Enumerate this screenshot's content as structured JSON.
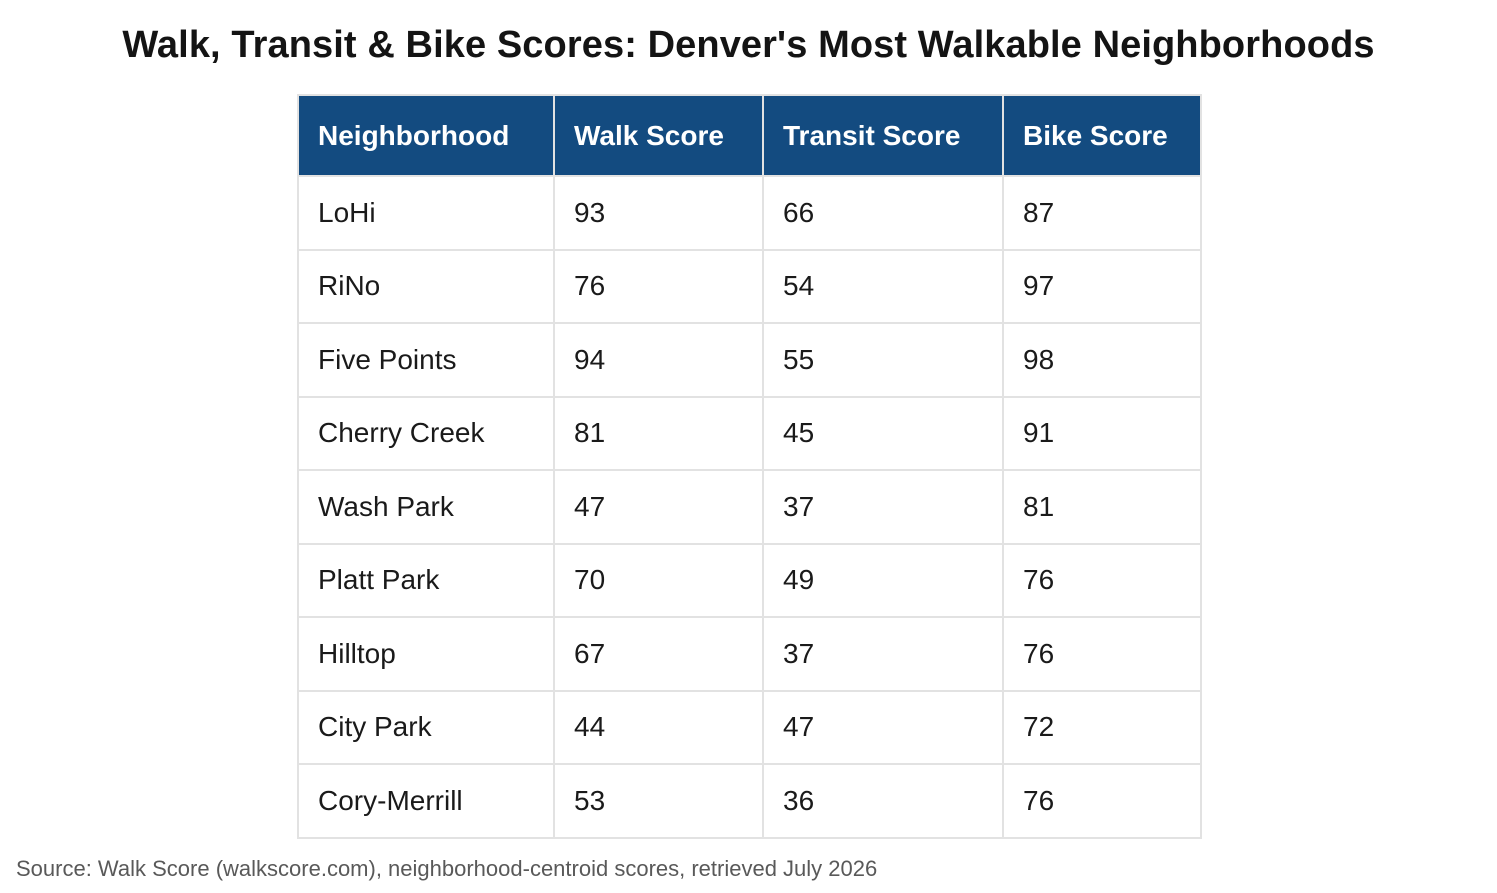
{
  "title": "Walk, Transit & Bike Scores: Denver's Most Walkable Neighborhoods",
  "header_color": "#134b80",
  "table": {
    "headers": [
      "Neighborhood",
      "Walk Score",
      "Transit Score",
      "Bike Score"
    ],
    "rows": [
      [
        "LoHi",
        "93",
        "66",
        "87"
      ],
      [
        "RiNo",
        "76",
        "54",
        "97"
      ],
      [
        "Five Points",
        "94",
        "55",
        "98"
      ],
      [
        "Cherry Creek",
        "81",
        "45",
        "91"
      ],
      [
        "Wash Park",
        "47",
        "37",
        "81"
      ],
      [
        "Platt Park",
        "70",
        "49",
        "76"
      ],
      [
        "Hilltop",
        "67",
        "37",
        "76"
      ],
      [
        "City Park",
        "44",
        "47",
        "72"
      ],
      [
        "Cory-Merrill",
        "53",
        "36",
        "76"
      ]
    ]
  },
  "source": "Source: Walk Score (walkscore.com), neighborhood-centroid scores, retrieved July 2026"
}
